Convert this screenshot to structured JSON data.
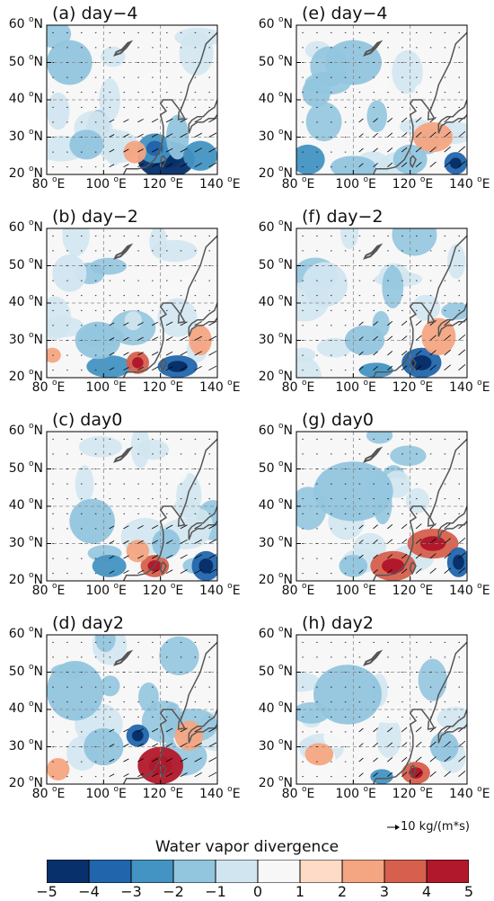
{
  "chart_data": {
    "type": "heatmap",
    "variable": "Water vapor divergence",
    "x_ticks": [
      "80",
      "100",
      "120",
      "140"
    ],
    "x_unit": "E",
    "y_ticks": [
      "20",
      "30",
      "40",
      "50",
      "60"
    ],
    "y_unit": "N",
    "xlim": [
      80,
      140
    ],
    "ylim": [
      20,
      60
    ],
    "reference_vector": "10 kg/(m*s)",
    "colorbar": {
      "label": "Water vapor divergence",
      "ticks": [
        "−5",
        "−4",
        "−3",
        "−2",
        "−1",
        "0",
        "1",
        "2",
        "3",
        "4",
        "5"
      ],
      "bins": [
        -5,
        -4,
        -3,
        -2,
        -1,
        0,
        1,
        2,
        3,
        4,
        5
      ],
      "colors": [
        "#08306b",
        "#2166ac",
        "#4393c3",
        "#92c5de",
        "#d1e5f0",
        "#f7f7f7",
        "#fddbc7",
        "#f4a582",
        "#d6604d",
        "#b2182b"
      ]
    },
    "panels": [
      {
        "id": "a",
        "title": "(a) day−4",
        "features": [
          {
            "lon": 122,
            "lat": 24,
            "rx": 10,
            "ry": 5,
            "v": -4.5
          },
          {
            "lon": 118,
            "lat": 27,
            "rx": 6,
            "ry": 4,
            "v": -3
          },
          {
            "lon": 126,
            "lat": 30,
            "rx": 4,
            "ry": 6,
            "v": -2
          },
          {
            "lon": 134,
            "lat": 25,
            "rx": 6,
            "ry": 4,
            "v": -2.5
          },
          {
            "lon": 111,
            "lat": 26,
            "rx": 4,
            "ry": 3,
            "v": 2
          },
          {
            "lon": 88,
            "lat": 50,
            "rx": 8,
            "ry": 6,
            "v": -1.5
          },
          {
            "lon": 94,
            "lat": 28,
            "rx": 6,
            "ry": 4,
            "v": -1.5
          },
          {
            "lon": 84,
            "lat": 37,
            "rx": 4,
            "ry": 5,
            "v": -1
          }
        ]
      },
      {
        "id": "e",
        "title": "(e) day−4",
        "features": [
          {
            "lon": 84,
            "lat": 24,
            "rx": 6,
            "ry": 4,
            "v": -2.5
          },
          {
            "lon": 100,
            "lat": 22,
            "rx": 8,
            "ry": 3,
            "v": -2
          },
          {
            "lon": 120,
            "lat": 24,
            "rx": 6,
            "ry": 4,
            "v": -2
          },
          {
            "lon": 136,
            "lat": 23,
            "rx": 4,
            "ry": 3,
            "v": -3.5
          },
          {
            "lon": 128,
            "lat": 30,
            "rx": 7,
            "ry": 4,
            "v": 2
          },
          {
            "lon": 100,
            "lat": 50,
            "rx": 10,
            "ry": 6,
            "v": -1.5
          },
          {
            "lon": 87,
            "lat": 42,
            "rx": 5,
            "ry": 4,
            "v": -1.5
          }
        ]
      },
      {
        "id": "b",
        "title": "(b) day−2",
        "features": [
          {
            "lon": 126,
            "lat": 23,
            "rx": 7,
            "ry": 3,
            "v": -4
          },
          {
            "lon": 102,
            "lat": 23,
            "rx": 8,
            "ry": 3,
            "v": -2.5
          },
          {
            "lon": 112,
            "lat": 24,
            "rx": 4,
            "ry": 3,
            "v": 3
          },
          {
            "lon": 134,
            "lat": 30,
            "rx": 4,
            "ry": 4,
            "v": 2.5
          },
          {
            "lon": 82,
            "lat": 26,
            "rx": 3,
            "ry": 2,
            "v": 2
          },
          {
            "lon": 98,
            "lat": 30,
            "rx": 8,
            "ry": 5,
            "v": -1.5
          },
          {
            "lon": 88,
            "lat": 48,
            "rx": 6,
            "ry": 5,
            "v": -1
          }
        ]
      },
      {
        "id": "f",
        "title": "(f) day−2",
        "features": [
          {
            "lon": 124,
            "lat": 24,
            "rx": 7,
            "ry": 4,
            "v": -4
          },
          {
            "lon": 108,
            "lat": 22,
            "rx": 6,
            "ry": 2,
            "v": -2.5
          },
          {
            "lon": 130,
            "lat": 31,
            "rx": 6,
            "ry": 5,
            "v": 2
          },
          {
            "lon": 104,
            "lat": 30,
            "rx": 7,
            "ry": 4,
            "v": -1.5
          },
          {
            "lon": 90,
            "lat": 45,
            "rx": 8,
            "ry": 6,
            "v": -1
          }
        ]
      },
      {
        "id": "c",
        "title": "(c) day0",
        "features": [
          {
            "lon": 136,
            "lat": 24,
            "rx": 5,
            "ry": 4,
            "v": -3.5
          },
          {
            "lon": 118,
            "lat": 24,
            "rx": 5,
            "ry": 3,
            "v": 3
          },
          {
            "lon": 102,
            "lat": 24,
            "rx": 6,
            "ry": 3,
            "v": -2.5
          },
          {
            "lon": 122,
            "lat": 30,
            "rx": 5,
            "ry": 4,
            "v": -2
          },
          {
            "lon": 112,
            "lat": 28,
            "rx": 4,
            "ry": 3,
            "v": 2
          },
          {
            "lon": 96,
            "lat": 36,
            "rx": 8,
            "ry": 6,
            "v": -1.5
          }
        ]
      },
      {
        "id": "g",
        "title": "(g) day0",
        "features": [
          {
            "lon": 114,
            "lat": 24,
            "rx": 8,
            "ry": 4,
            "v": 3.5
          },
          {
            "lon": 128,
            "lat": 30,
            "rx": 9,
            "ry": 4,
            "v": 3
          },
          {
            "lon": 137,
            "lat": 25,
            "rx": 4,
            "ry": 4,
            "v": -3.5
          },
          {
            "lon": 100,
            "lat": 24,
            "rx": 5,
            "ry": 3,
            "v": -2
          },
          {
            "lon": 100,
            "lat": 44,
            "rx": 14,
            "ry": 8,
            "v": -1.5
          }
        ]
      },
      {
        "id": "d",
        "title": "(d) day2",
        "features": [
          {
            "lon": 120,
            "lat": 25,
            "rx": 8,
            "ry": 5,
            "v": 4
          },
          {
            "lon": 112,
            "lat": 33,
            "rx": 4,
            "ry": 3,
            "v": -3.5
          },
          {
            "lon": 130,
            "lat": 33,
            "rx": 5,
            "ry": 4,
            "v": 2
          },
          {
            "lon": 100,
            "lat": 30,
            "rx": 7,
            "ry": 5,
            "v": -2
          },
          {
            "lon": 90,
            "lat": 45,
            "rx": 10,
            "ry": 8,
            "v": -1.5
          },
          {
            "lon": 84,
            "lat": 24,
            "rx": 4,
            "ry": 3,
            "v": 2
          }
        ]
      },
      {
        "id": "h",
        "title": "(h) day2",
        "features": [
          {
            "lon": 122,
            "lat": 23,
            "rx": 5,
            "ry": 3,
            "v": 3
          },
          {
            "lon": 110,
            "lat": 22,
            "rx": 4,
            "ry": 2,
            "v": -2.5
          },
          {
            "lon": 98,
            "lat": 44,
            "rx": 12,
            "ry": 8,
            "v": -1.5
          },
          {
            "lon": 132,
            "lat": 30,
            "rx": 5,
            "ry": 4,
            "v": -1.5
          },
          {
            "lon": 88,
            "lat": 28,
            "rx": 5,
            "ry": 3,
            "v": 2
          }
        ]
      }
    ]
  }
}
